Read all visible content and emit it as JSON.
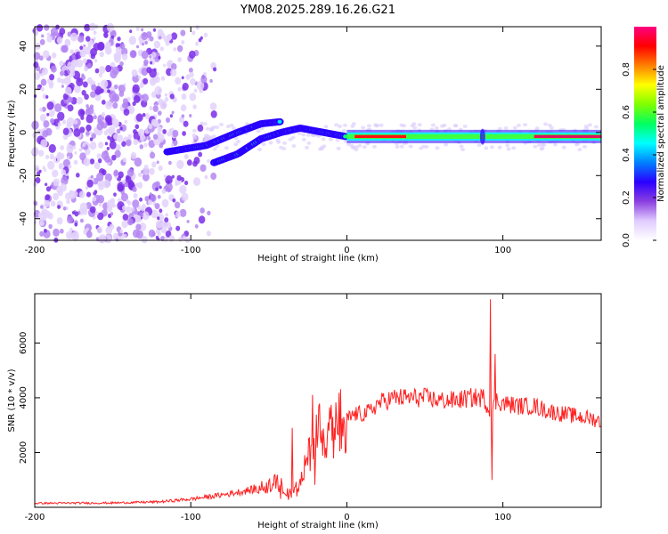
{
  "chart_data": [
    {
      "type": "heatmap",
      "title": "YM08.2025.289.16.26.G21",
      "xlabel": "Height of straight line (km)",
      "ylabel": "Frequency (Hz)",
      "xlim": [
        -200,
        163
      ],
      "ylim": [
        -50,
        49
      ],
      "xticks": [
        -200,
        -100,
        0,
        100
      ],
      "yticks": [
        -40,
        -20,
        0,
        20,
        40
      ],
      "xtick_labels": [
        "-200",
        "-100",
        "0",
        "100"
      ],
      "ytick_labels": [
        "-40",
        "-20",
        "0",
        "20",
        "40"
      ],
      "colorbar": {
        "label": "Normalized spectral amplitude",
        "range": [
          0,
          1
        ],
        "ticks": [
          0.0,
          0.2,
          0.4,
          0.6,
          0.8
        ],
        "tick_labels": [
          "0.0",
          "0.2",
          "0.4",
          "0.6",
          "0.8"
        ],
        "colors": [
          "#ffffff",
          "#e0ccff",
          "#8b3fe0",
          "#2a00ff",
          "#0080ff",
          "#00ffff",
          "#00ff60",
          "#80ff00",
          "#ffff00",
          "#ff8000",
          "#ff0000",
          "#ff0080"
        ]
      },
      "features": {
        "noise_region": [
          -200,
          -80
        ],
        "branch_upper": [
          [
            -115,
            -9
          ],
          [
            -90,
            -6
          ],
          [
            -70,
            0
          ],
          [
            -55,
            4
          ],
          [
            -42,
            5
          ]
        ],
        "branch_lower": [
          [
            -85,
            -14
          ],
          [
            -70,
            -10
          ],
          [
            -55,
            -3
          ],
          [
            -42,
            0
          ],
          [
            -30,
            2
          ],
          [
            -15,
            0
          ],
          [
            0,
            -2
          ]
        ],
        "ridge_main": [
          [
            0,
            -1
          ],
          [
            40,
            -2
          ],
          [
            80,
            -2
          ],
          [
            163,
            -2
          ]
        ],
        "ridge_peak_range": [
          5,
          38
        ]
      }
    },
    {
      "type": "line",
      "xlabel": "Height of straight line (km)",
      "ylabel": "SNR (10 * v/v)",
      "xlim": [
        -200,
        163
      ],
      "ylim": [
        0,
        7800
      ],
      "xticks": [
        -200,
        -100,
        0,
        100
      ],
      "yticks": [
        2000,
        4000,
        6000
      ],
      "xtick_labels": [
        "-200",
        "-100",
        "0",
        "100"
      ],
      "ytick_labels": [
        "2000",
        "4000",
        "6000"
      ],
      "series": [
        {
          "name": "SNR",
          "color": "#ff2020",
          "envelope": [
            [
              -200,
              150
            ],
            [
              -150,
              160
            ],
            [
              -120,
              200
            ],
            [
              -100,
              300
            ],
            [
              -80,
              450
            ],
            [
              -65,
              600
            ],
            [
              -55,
              700
            ],
            [
              -45,
              900
            ],
            [
              -40,
              700
            ],
            [
              -35,
              500
            ],
            [
              -30,
              900
            ],
            [
              -25,
              1800
            ],
            [
              -20,
              2500
            ],
            [
              -15,
              2800
            ],
            [
              -10,
              3000
            ],
            [
              -5,
              3000
            ],
            [
              0,
              3200
            ],
            [
              5,
              3400
            ],
            [
              10,
              3400
            ],
            [
              15,
              3500
            ],
            [
              20,
              3800
            ],
            [
              30,
              4000
            ],
            [
              40,
              4000
            ],
            [
              50,
              4000
            ],
            [
              60,
              3900
            ],
            [
              70,
              3900
            ],
            [
              80,
              4000
            ],
            [
              88,
              4000
            ],
            [
              92,
              3400
            ],
            [
              96,
              3900
            ],
            [
              100,
              3800
            ],
            [
              110,
              3700
            ],
            [
              120,
              3700
            ],
            [
              130,
              3500
            ],
            [
              140,
              3400
            ],
            [
              150,
              3300
            ],
            [
              160,
              3200
            ],
            [
              163,
              3100
            ]
          ],
          "spikes": [
            [
              -35,
              2900
            ],
            [
              -22,
              4100
            ],
            [
              -18,
              3700
            ],
            [
              -12,
              3100
            ],
            [
              -2,
              3300
            ],
            [
              92,
              7600
            ],
            [
              93,
              1000
            ],
            [
              95,
              5600
            ]
          ]
        }
      ]
    }
  ]
}
